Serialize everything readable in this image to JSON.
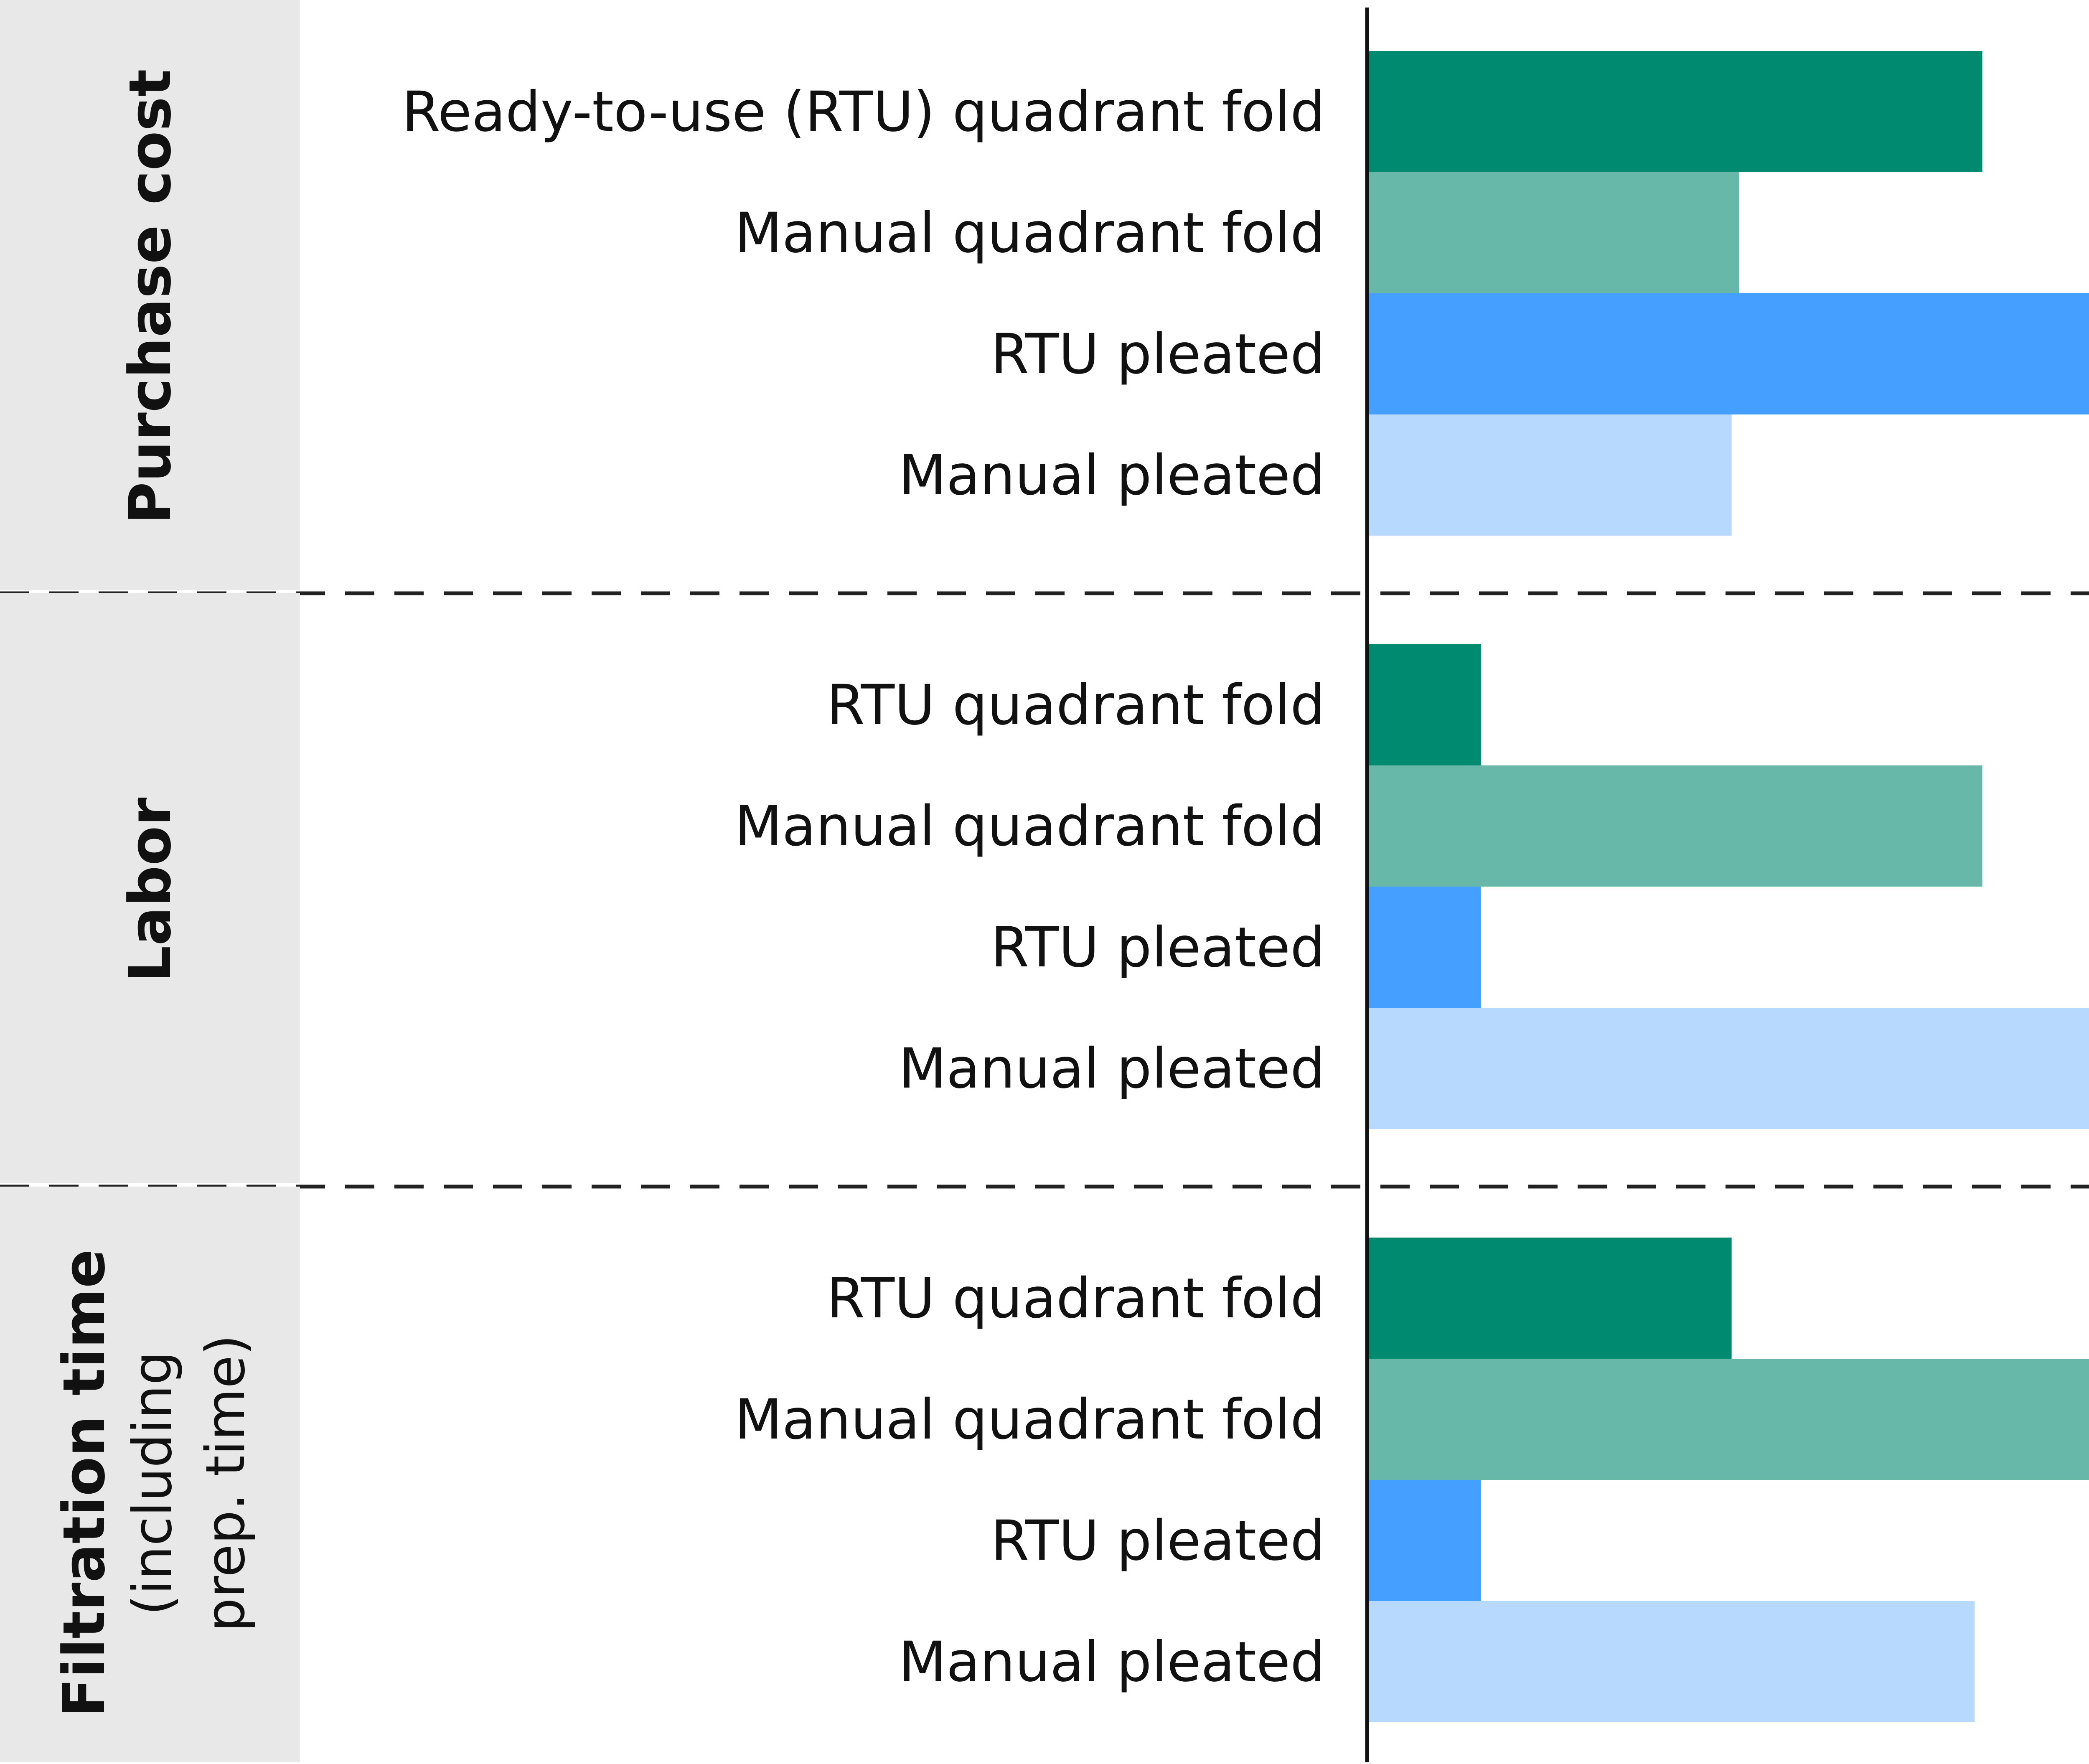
{
  "chart_data": {
    "type": "bar",
    "orientation": "horizontal",
    "title": "",
    "xlabel": "",
    "ylabel": "",
    "xlim": [
      0,
      100
    ],
    "grid": false,
    "legend": "none",
    "groups": [
      {
        "title": "Purchase cost",
        "subtitle": "",
        "bars": [
          {
            "label": "Ready-to-use (RTU) quadrant fold",
            "value": 81,
            "color": "#008a70"
          },
          {
            "label": "Manual quadrant fold",
            "value": 49,
            "color": "#67b8a9"
          },
          {
            "label": "RTU pleated",
            "value": 100,
            "color": "#449ffe"
          },
          {
            "label": "Manual pleated",
            "value": 48,
            "color": "#b7d9fe"
          }
        ]
      },
      {
        "title": "Labor",
        "subtitle": "",
        "bars": [
          {
            "label": "RTU quadrant fold",
            "value": 15,
            "color": "#008a70"
          },
          {
            "label": "Manual quadrant fold",
            "value": 81,
            "color": "#67b8a9"
          },
          {
            "label": "RTU pleated",
            "value": 15,
            "color": "#449ffe"
          },
          {
            "label": "Manual pleated",
            "value": 100,
            "color": "#b7d9fe"
          }
        ]
      },
      {
        "title": "Filtration time",
        "subtitle": "(including prep. time)",
        "bars": [
          {
            "label": "RTU quadrant fold",
            "value": 48,
            "color": "#008a70"
          },
          {
            "label": "Manual quadrant fold",
            "value": 99,
            "color": "#67b8a9"
          },
          {
            "label": "RTU pleated",
            "value": 15,
            "color": "#449ffe"
          },
          {
            "label": "Manual pleated",
            "value": 80,
            "color": "#b7d9fe"
          }
        ]
      }
    ]
  },
  "colors": {
    "group_band": "#e8e8e8",
    "axis": "#111111",
    "divider": "#222222"
  }
}
